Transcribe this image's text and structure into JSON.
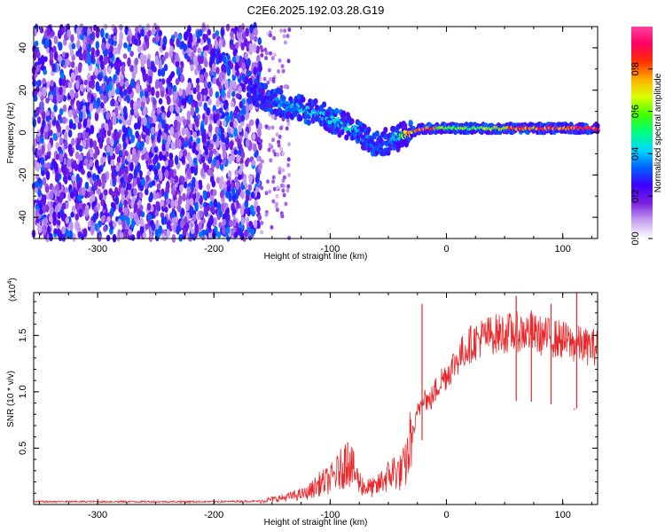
{
  "title": "C2E6.2025.192.03.28.G19",
  "chart_data": [
    {
      "type": "heatmap",
      "title": "C2E6.2025.192.03.28.G19",
      "xlabel": "Height of straight line (km)",
      "ylabel": "Frequency (Hz)",
      "xlim": [
        -355,
        130
      ],
      "ylim": [
        -50,
        50
      ],
      "x_ticks": [
        -300,
        -200,
        -100,
        0,
        100
      ],
      "y_ticks": [
        -40,
        -20,
        0,
        20,
        40
      ],
      "colorbar": {
        "label": "Normalized spectral amplitude",
        "range": [
          0,
          1
        ],
        "ticks": [
          "0.0",
          "0.2",
          "0.4",
          "0.6",
          "0.8"
        ],
        "colors": [
          "#ffffff",
          "#c8a2f0",
          "#7a22e0",
          "#4000ff",
          "#0060ff",
          "#00d8ff",
          "#00ff80",
          "#40ff00",
          "#d8ff00",
          "#ffb000",
          "#ff3000",
          "#ff0060",
          "#ff40a0"
        ]
      },
      "noise_region_x": [
        -355,
        -160
      ],
      "ridge": {
        "x": [
          -170,
          -150,
          -130,
          -110,
          -95,
          -80,
          -70,
          -60,
          -50,
          -40,
          -30,
          -20,
          0,
          20,
          40,
          60,
          80,
          100,
          130
        ],
        "y": [
          20,
          15,
          12,
          9,
          5,
          2,
          -3,
          -5,
          -4,
          -2,
          0,
          2,
          2,
          2,
          2,
          2,
          2,
          2,
          2
        ],
        "amplitude": [
          0.25,
          0.35,
          0.45,
          0.45,
          0.45,
          0.5,
          0.4,
          0.3,
          0.35,
          0.55,
          0.85,
          0.95,
          0.65,
          0.6,
          0.7,
          0.85,
          0.9,
          0.95,
          0.95
        ]
      }
    },
    {
      "type": "line",
      "xlabel": "Height of straight line (km)",
      "ylabel": "SNR (10 * v/v)",
      "y_multiplier": "(x10",
      "y_multiplier_exp": "4",
      "xlim": [
        -355,
        130
      ],
      "ylim": [
        0,
        18800
      ],
      "x_ticks": [
        -300,
        -200,
        -100,
        0,
        100
      ],
      "y_ticks": [
        5000,
        10000,
        15000
      ],
      "y_tick_labels": [
        "0.5",
        "1.0",
        "1.5"
      ],
      "series_color": "#e8282a",
      "series": [
        {
          "x": [
            -355,
            -300,
            -250,
            -200,
            -160,
            -140,
            -120,
            -110,
            -100,
            -95,
            -90,
            -85,
            -80,
            -75,
            -70,
            -60,
            -55,
            -50,
            -45,
            -40,
            -35,
            -30,
            -27,
            -25,
            -22,
            -20,
            -18,
            -15,
            -10,
            -5,
            0,
            10,
            20,
            30,
            40,
            50,
            60,
            70,
            80,
            90,
            100,
            105,
            110,
            115,
            120,
            130
          ],
          "y": [
            250,
            250,
            250,
            250,
            300,
            600,
            1000,
            1800,
            2200,
            2700,
            3200,
            4000,
            3000,
            2000,
            1500,
            1500,
            2200,
            2500,
            3000,
            2800,
            3500,
            6000,
            7000,
            8000,
            9000,
            10000,
            9500,
            9000,
            10000,
            11000,
            11500,
            13000,
            14200,
            14800,
            15100,
            15200,
            15300,
            15300,
            15000,
            14800,
            14600,
            14400,
            14200,
            14200,
            14000,
            14000
          ]
        }
      ],
      "spikes": [
        {
          "x": -21,
          "y": 17800
        },
        {
          "x": -85,
          "y": 5500
        },
        {
          "x": 60,
          "y": 18500
        },
        {
          "x": 73,
          "y": 17200
        },
        {
          "x": 90,
          "y": 17800
        },
        {
          "x": 112,
          "y": 18800
        },
        {
          "x": 110,
          "y": 8400
        }
      ]
    }
  ]
}
